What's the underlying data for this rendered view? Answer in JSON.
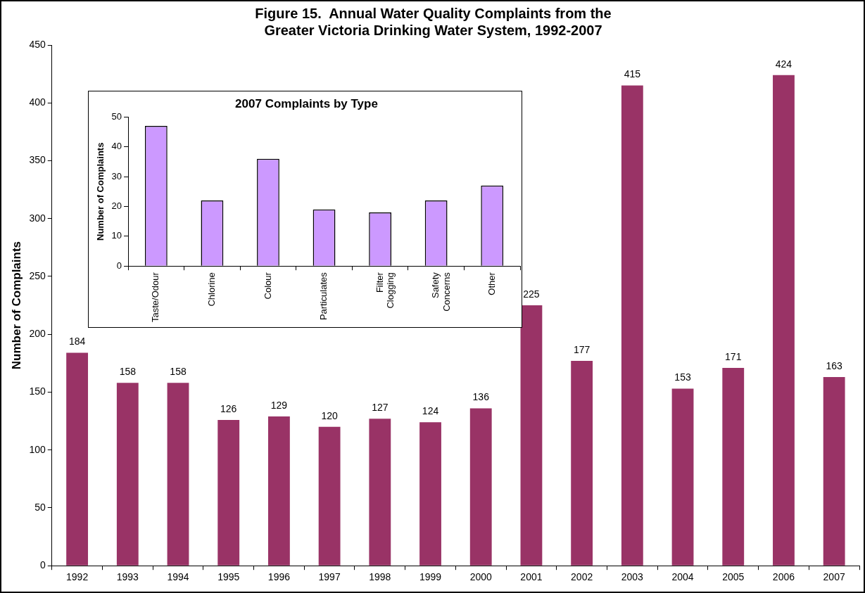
{
  "chart_data": [
    {
      "type": "bar",
      "title": "Figure 15.  Annual Water Quality Complaints from the Greater Victoria Drinking Water System, 1992-2007",
      "ylabel": "Number of Complaints",
      "categories": [
        "1992",
        "1993",
        "1994",
        "1995",
        "1996",
        "1997",
        "1998",
        "1999",
        "2000",
        "2001",
        "2002",
        "2003",
        "2004",
        "2005",
        "2006",
        "2007"
      ],
      "values": [
        184,
        158,
        158,
        126,
        129,
        120,
        127,
        124,
        136,
        225,
        177,
        415,
        153,
        171,
        424,
        163
      ],
      "color": "#993366",
      "ylim": [
        0,
        450
      ],
      "yticks": [
        0,
        50,
        100,
        150,
        200,
        250,
        300,
        350,
        400,
        450
      ],
      "grid": false,
      "legend": false,
      "data_labels": true
    },
    {
      "type": "bar",
      "title": "2007 Complaints by Type",
      "ylabel": "Number of Complaints",
      "categories": [
        "Taste/Odour",
        "Chlorine",
        "Colour",
        "Particulates",
        "Filter Clogging",
        "Safety Concerns",
        "Other"
      ],
      "values": [
        47,
        22,
        36,
        19,
        18,
        22,
        27
      ],
      "color": "#cc99ff",
      "ylim": [
        0,
        50
      ],
      "yticks": [
        0,
        10,
        20,
        30,
        40,
        50
      ],
      "grid": false,
      "legend": false
    }
  ]
}
